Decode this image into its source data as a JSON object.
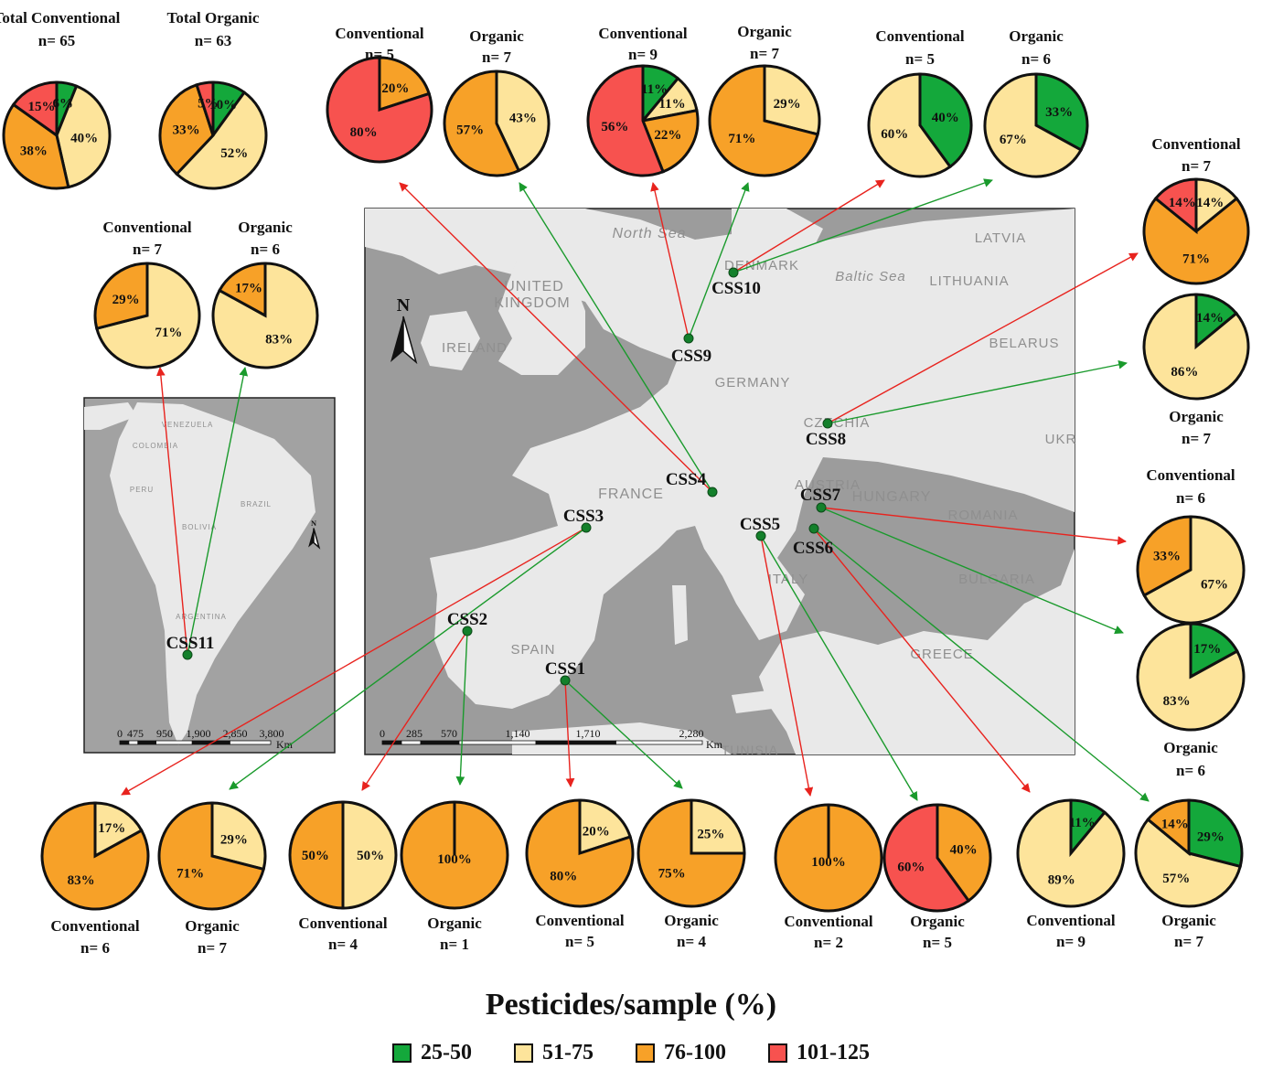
{
  "colors": {
    "c25_50": "#14a83b",
    "c51_75": "#fde49b",
    "c76_100": "#f7a128",
    "c101_125": "#f7524f",
    "arrow_red": "#e8231e",
    "arrow_green": "#1a9a2c"
  },
  "legend": {
    "title": "Pesticides/sample (%)",
    "items": [
      {
        "label": "25-50",
        "color": "#14a83b"
      },
      {
        "label": "51-75",
        "color": "#fde49b"
      },
      {
        "label": "76-100",
        "color": "#f7a128"
      },
      {
        "label": "101-125",
        "color": "#f7524f"
      }
    ]
  },
  "map": {
    "europe_labels": [
      "North Sea",
      "UNITED",
      "KINGDOM",
      "IRELAND",
      "DENMARK",
      "Baltic Sea",
      "LATVIA",
      "LITHUANIA",
      "BELARUS",
      "GERMANY",
      "CZECHIA",
      "UKR",
      "FRANCE",
      "AUSTRIA",
      "HUNGARY",
      "ROMANIA",
      "SPAIN",
      "ITALY",
      "BULGARIA",
      "GREECE",
      "TUNISIA"
    ],
    "sa_labels": [
      "VENEZUELA",
      "COLOMBIA",
      "PERU",
      "BRAZIL",
      "BOLIVIA",
      "ARGENTINA"
    ],
    "north": "N",
    "scale_europe": [
      "0",
      "285",
      "570",
      "1,140",
      "1,710",
      "2,280",
      "Km"
    ],
    "scale_sa": [
      "0",
      "475",
      "950",
      "1,900",
      "2,850",
      "3,800",
      "Km"
    ]
  },
  "sites": [
    "CSS1",
    "CSS2",
    "CSS3",
    "CSS4",
    "CSS5",
    "CSS6",
    "CSS7",
    "CSS8",
    "CSS9",
    "CSS10",
    "CSS11"
  ],
  "chart_data": [
    {
      "type": "pie",
      "name": "Total Conventional",
      "n": "n= 65",
      "slices": [
        {
          "category": "25-50",
          "value": 6,
          "label": "6%"
        },
        {
          "category": "51-75",
          "value": 40,
          "label": "40%"
        },
        {
          "category": "76-100",
          "value": 38,
          "label": "38%"
        },
        {
          "category": "101-125",
          "value": 15,
          "label": "15%"
        }
      ]
    },
    {
      "type": "pie",
      "name": "Total Organic",
      "n": "n= 63",
      "slices": [
        {
          "category": "25-50",
          "value": 10,
          "label": "10%"
        },
        {
          "category": "51-75",
          "value": 52,
          "label": "52%"
        },
        {
          "category": "76-100",
          "value": 33,
          "label": "33%"
        },
        {
          "category": "101-125",
          "value": 5,
          "label": "5%"
        }
      ]
    },
    {
      "type": "pie",
      "site": "CSS4",
      "name": "Conventional",
      "n": "n= 5",
      "slices": [
        {
          "category": "76-100",
          "value": 20,
          "label": "20%"
        },
        {
          "category": "101-125",
          "value": 80,
          "label": "80%"
        }
      ]
    },
    {
      "type": "pie",
      "site": "CSS4",
      "name": "Organic",
      "n": "n= 7",
      "slices": [
        {
          "category": "51-75",
          "value": 43,
          "label": "43%"
        },
        {
          "category": "76-100",
          "value": 57,
          "label": "57%"
        }
      ]
    },
    {
      "type": "pie",
      "site": "CSS9",
      "name": "Conventional",
      "n": "n= 9",
      "slices": [
        {
          "category": "25-50",
          "value": 11,
          "label": "11%"
        },
        {
          "category": "51-75",
          "value": 11,
          "label": "11%"
        },
        {
          "category": "76-100",
          "value": 22,
          "label": "22%"
        },
        {
          "category": "101-125",
          "value": 56,
          "label": "56%"
        }
      ]
    },
    {
      "type": "pie",
      "site": "CSS9",
      "name": "Organic",
      "n": "n= 7",
      "slices": [
        {
          "category": "51-75",
          "value": 29,
          "label": "29%"
        },
        {
          "category": "76-100",
          "value": 71,
          "label": "71%"
        }
      ]
    },
    {
      "type": "pie",
      "site": "CSS10",
      "name": "Conventional",
      "n": "n= 5",
      "slices": [
        {
          "category": "25-50",
          "value": 40,
          "label": "40%"
        },
        {
          "category": "51-75",
          "value": 60,
          "label": "60%"
        }
      ]
    },
    {
      "type": "pie",
      "site": "CSS10",
      "name": "Organic",
      "n": "n= 6",
      "slices": [
        {
          "category": "25-50",
          "value": 33,
          "label": "33%"
        },
        {
          "category": "51-75",
          "value": 67,
          "label": "67%"
        }
      ]
    },
    {
      "type": "pie",
      "site": "CSS11",
      "name": "Conventional",
      "n": "n= 7",
      "slices": [
        {
          "category": "51-75",
          "value": 71,
          "label": "71%"
        },
        {
          "category": "76-100",
          "value": 29,
          "label": "29%"
        }
      ]
    },
    {
      "type": "pie",
      "site": "CSS11",
      "name": "Organic",
      "n": "n= 6",
      "slices": [
        {
          "category": "51-75",
          "value": 83,
          "label": "83%"
        },
        {
          "category": "76-100",
          "value": 17,
          "label": "17%"
        }
      ]
    },
    {
      "type": "pie",
      "site": "CSS8",
      "name": "Conventional",
      "n": "n= 7",
      "slices": [
        {
          "category": "51-75",
          "value": 14,
          "label": "14%"
        },
        {
          "category": "76-100",
          "value": 71,
          "label": "71%"
        },
        {
          "category": "101-125",
          "value": 14,
          "label": "14%"
        }
      ]
    },
    {
      "type": "pie",
      "site": "CSS8",
      "name": "Organic",
      "n": "n= 7",
      "slices": [
        {
          "category": "25-50",
          "value": 14,
          "label": "14%"
        },
        {
          "category": "51-75",
          "value": 86,
          "label": "86%"
        }
      ]
    },
    {
      "type": "pie",
      "site": "CSS7",
      "name": "Conventional",
      "n": "n= 6",
      "slices": [
        {
          "category": "51-75",
          "value": 67,
          "label": "67%"
        },
        {
          "category": "76-100",
          "value": 33,
          "label": "33%"
        }
      ]
    },
    {
      "type": "pie",
      "site": "CSS7",
      "name": "Organic",
      "n": "n= 6",
      "slices": [
        {
          "category": "25-50",
          "value": 17,
          "label": "17%"
        },
        {
          "category": "51-75",
          "value": 83,
          "label": "83%"
        }
      ]
    },
    {
      "type": "pie",
      "site": "CSS3",
      "name": "Conventional",
      "n": "n= 6",
      "slices": [
        {
          "category": "51-75",
          "value": 17,
          "label": "17%"
        },
        {
          "category": "76-100",
          "value": 83,
          "label": "83%"
        }
      ]
    },
    {
      "type": "pie",
      "site": "CSS3",
      "name": "Organic",
      "n": "n= 7",
      "slices": [
        {
          "category": "51-75",
          "value": 29,
          "label": "29%"
        },
        {
          "category": "76-100",
          "value": 71,
          "label": "71%"
        }
      ]
    },
    {
      "type": "pie",
      "site": "CSS2",
      "name": "Conventional",
      "n": "n= 4",
      "slices": [
        {
          "category": "51-75",
          "value": 50,
          "label": "50%"
        },
        {
          "category": "76-100",
          "value": 50,
          "label": "50%"
        }
      ]
    },
    {
      "type": "pie",
      "site": "CSS2",
      "name": "Organic",
      "n": "n= 1",
      "slices": [
        {
          "category": "76-100",
          "value": 100,
          "label": "100%"
        }
      ]
    },
    {
      "type": "pie",
      "site": "CSS1",
      "name": "Conventional",
      "n": "n= 5",
      "slices": [
        {
          "category": "51-75",
          "value": 20,
          "label": "20%"
        },
        {
          "category": "76-100",
          "value": 80,
          "label": "80%"
        }
      ]
    },
    {
      "type": "pie",
      "site": "CSS1",
      "name": "Organic",
      "n": "n= 4",
      "slices": [
        {
          "category": "51-75",
          "value": 25,
          "label": "25%"
        },
        {
          "category": "76-100",
          "value": 75,
          "label": "75%"
        }
      ]
    },
    {
      "type": "pie",
      "site": "CSS5",
      "name": "Conventional",
      "n": "n= 2",
      "slices": [
        {
          "category": "76-100",
          "value": 100,
          "label": "100%"
        }
      ]
    },
    {
      "type": "pie",
      "site": "CSS5",
      "name": "Organic",
      "n": "n= 5",
      "slices": [
        {
          "category": "76-100",
          "value": 40,
          "label": "40%"
        },
        {
          "category": "101-125",
          "value": 60,
          "label": "60%"
        }
      ]
    },
    {
      "type": "pie",
      "site": "CSS6",
      "name": "Conventional",
      "n": "n= 9",
      "slices": [
        {
          "category": "25-50",
          "value": 11,
          "label": "11%"
        },
        {
          "category": "51-75",
          "value": 89,
          "label": "89%"
        }
      ]
    },
    {
      "type": "pie",
      "site": "CSS6",
      "name": "Organic",
      "n": "n= 7",
      "slices": [
        {
          "category": "25-50",
          "value": 29,
          "label": "29%"
        },
        {
          "category": "51-75",
          "value": 57,
          "label": "57%"
        },
        {
          "category": "76-100",
          "value": 14,
          "label": "14%"
        }
      ]
    }
  ]
}
